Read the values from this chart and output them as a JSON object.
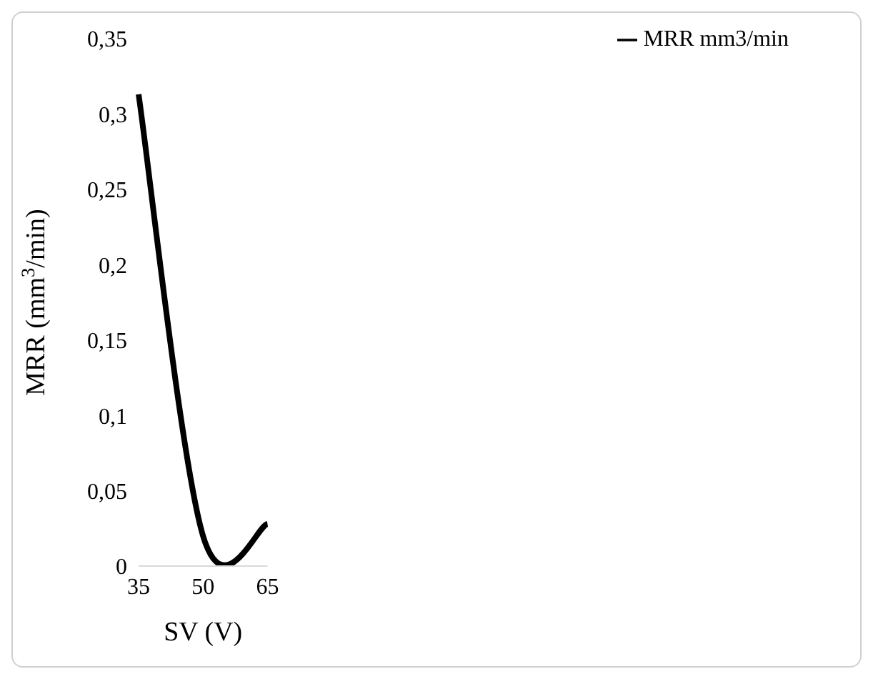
{
  "chart_data": {
    "type": "line",
    "xlabel": "SV (V)",
    "ylabel": "MRR (mm$^{3}$/min)",
    "categories": [
      "35",
      "50",
      "65"
    ],
    "series": [
      {
        "name": "MRR mm3/min",
        "color": "#000000",
        "values": [
          0.313,
          0.02,
          0.028
        ]
      }
    ],
    "ylim": [
      0,
      0.35
    ],
    "yticks": [
      0,
      {
        "value": 0.05,
        "label": "0,05"
      },
      {
        "value": 0.1,
        "label": "0,1"
      },
      {
        "value": 0.15,
        "label": "0,15"
      },
      {
        "value": 0.2,
        "label": "0,2"
      },
      {
        "value": 0.25,
        "label": "0,25"
      },
      {
        "value": 0.3,
        "label": "0,3"
      },
      {
        "value": 0.35,
        "label": "0,35"
      }
    ],
    "grid": false,
    "legend": "top right",
    "marker": "none",
    "line_style": "solid"
  }
}
